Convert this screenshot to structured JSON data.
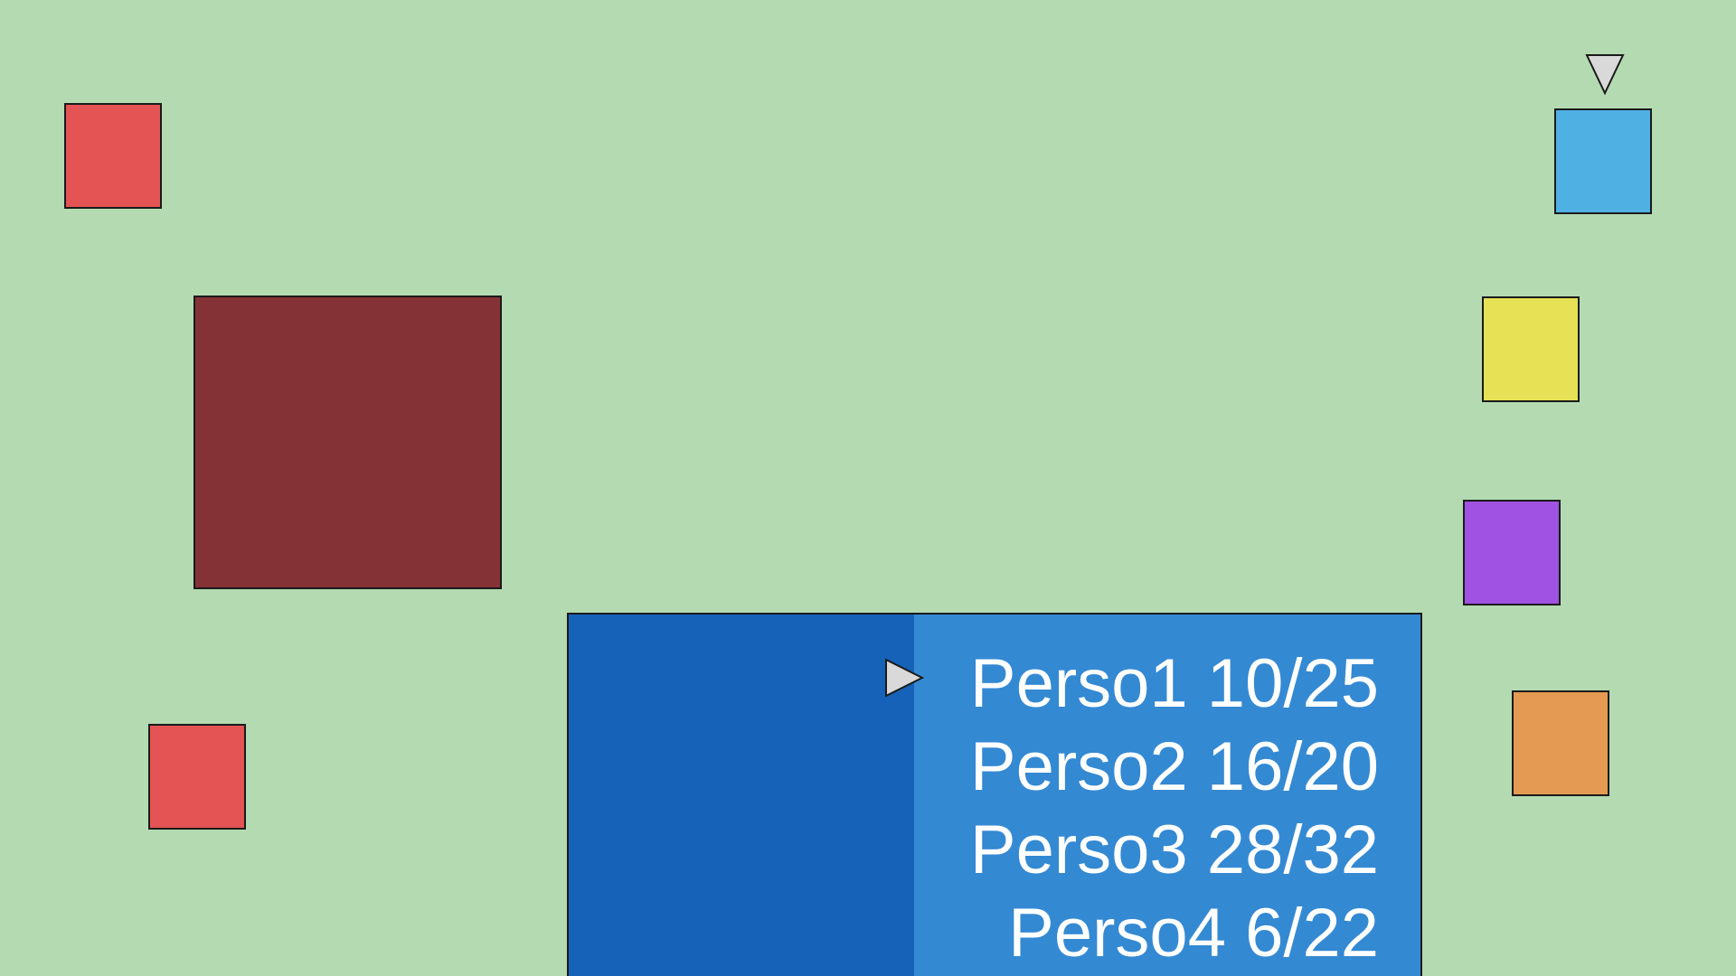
{
  "colors": {
    "background": "#b4dab1",
    "enemy": "#e45454",
    "boss": "#843236",
    "ally_blue": "#4fb0e4",
    "ally_yellow": "#e6e155",
    "ally_purple": "#a052e2",
    "ally_orange": "#e49a52",
    "panel_left": "#1662b8",
    "panel_right": "#3489d3",
    "cursor": "#d9d9d9",
    "text": "#ffffff"
  },
  "enemies": [
    {
      "id": "enemy-1",
      "color": "#e45454"
    },
    {
      "id": "enemy-boss",
      "color": "#843236"
    },
    {
      "id": "enemy-2",
      "color": "#e45454"
    }
  ],
  "allies": [
    {
      "id": "ally-1",
      "color": "#4fb0e4"
    },
    {
      "id": "ally-2",
      "color": "#e6e155"
    },
    {
      "id": "ally-3",
      "color": "#a052e2"
    },
    {
      "id": "ally-4",
      "color": "#e49a52"
    }
  ],
  "party": [
    {
      "label": "Perso1 10/25",
      "name": "Perso1",
      "hp": 10,
      "hp_max": 25
    },
    {
      "label": "Perso2 16/20",
      "name": "Perso2",
      "hp": 16,
      "hp_max": 20
    },
    {
      "label": "Perso3 28/32",
      "name": "Perso3",
      "hp": 28,
      "hp_max": 32
    },
    {
      "label": "Perso4 6/22",
      "name": "Perso4",
      "hp": 6,
      "hp_max": 22
    }
  ],
  "icons": {
    "turn_indicator": "triangle-down-icon",
    "selection_cursor": "triangle-right-icon"
  },
  "selected_index": 0
}
